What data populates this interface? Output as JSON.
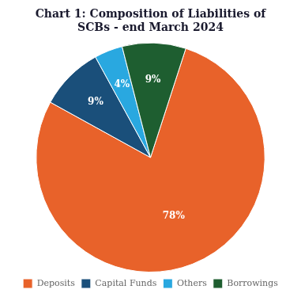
{
  "chart_data": {
    "type": "pie",
    "title": "Chart 1: Composition of Liabilities of\nSCBs - end March 2024",
    "categories": [
      "Deposits",
      "Capital Funds",
      "Others",
      "Borrowings"
    ],
    "values": [
      78,
      9,
      4,
      9
    ],
    "value_labels": [
      "78%",
      "9%",
      "4%",
      "9%"
    ],
    "colors": [
      "#e8622a",
      "#1a4f7a",
      "#29a8e0",
      "#1e5e30"
    ],
    "data_labels": true,
    "legend": "bottom"
  }
}
